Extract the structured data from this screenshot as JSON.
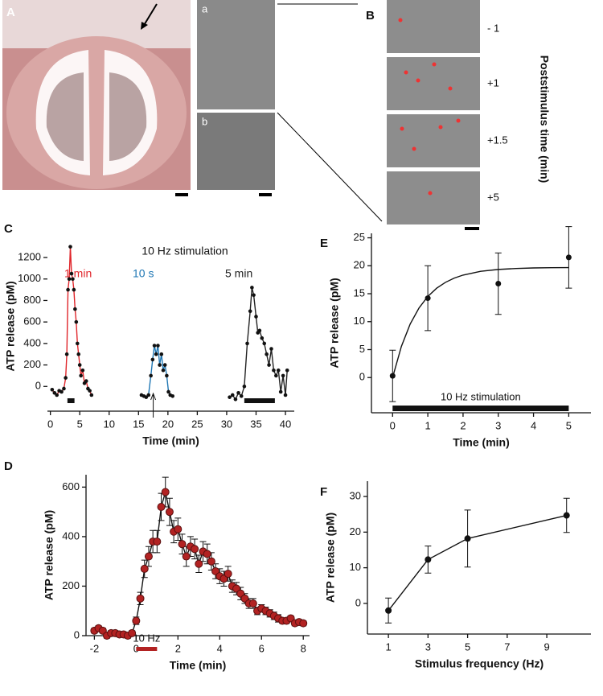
{
  "images": {
    "A": "A",
    "a": "a",
    "b": "b",
    "B": "B",
    "times": [
      "- 1",
      "+1",
      "+1.5",
      "+5"
    ],
    "time_axis": "Poststimulus time (min)"
  },
  "chart_data": [
    {
      "type": "line",
      "panel": "C",
      "annotation": "10 Hz stimulation",
      "xlabel": "Time (min)",
      "ylabel": "ATP release (pM)",
      "xlim": [
        -0.5,
        41.5
      ],
      "xticks": [
        0,
        5,
        10,
        15,
        20,
        25,
        30,
        35,
        40
      ],
      "ylim": [
        -230,
        1350
      ],
      "yticks": [
        0,
        200,
        400,
        600,
        800,
        1000,
        1200
      ],
      "stimulus": [
        {
          "start": 2.9,
          "end": 4.1
        },
        {
          "start": 33,
          "end": 38.2
        }
      ],
      "marker_x": 17.5,
      "series": [
        {
          "name": "1 min",
          "color": "#e0262b",
          "x": [
            0.3,
            0.7,
            1.1,
            1.5,
            1.9,
            2.3,
            2.6,
            2.8,
            3.0,
            3.2,
            3.4,
            3.6,
            3.8,
            4.0,
            4.2,
            4.4,
            4.6,
            4.8,
            5.0,
            5.2,
            5.5,
            5.8,
            6.1,
            6.4,
            6.7,
            7.0
          ],
          "values": [
            -30,
            -60,
            -80,
            -40,
            -50,
            -20,
            80,
            300,
            900,
            1000,
            1300,
            1050,
            1000,
            900,
            720,
            600,
            400,
            300,
            200,
            100,
            150,
            30,
            50,
            -20,
            -40,
            -80
          ]
        },
        {
          "name": "10 s",
          "color": "#1f77b4",
          "x": [
            15.5,
            15.9,
            16.3,
            16.7,
            17.1,
            17.4,
            17.7,
            18.0,
            18.3,
            18.6,
            18.9,
            19.2,
            19.5,
            19.8,
            20.1,
            20.4,
            20.8
          ],
          "values": [
            -80,
            -90,
            -100,
            -80,
            100,
            250,
            380,
            300,
            380,
            200,
            300,
            150,
            200,
            100,
            -50,
            -80,
            -90
          ]
        },
        {
          "name": "5 min",
          "color": "#222222",
          "x": [
            30.5,
            31,
            31.5,
            32,
            32.5,
            33,
            33.5,
            34,
            34.3,
            34.6,
            35,
            35.3,
            35.6,
            36,
            36.4,
            36.8,
            37.2,
            37.6,
            38,
            38.4,
            38.8,
            39.2,
            39.6,
            40,
            40.3
          ],
          "values": [
            -100,
            -80,
            -120,
            -60,
            -90,
            0,
            400,
            700,
            920,
            850,
            650,
            500,
            520,
            450,
            400,
            300,
            200,
            350,
            150,
            100,
            150,
            -50,
            100,
            -80,
            150
          ]
        }
      ]
    },
    {
      "type": "errorline",
      "panel": "D",
      "xlabel": "Time (min)",
      "ylabel": "ATP release (pM)",
      "xlim": [
        -2.4,
        8.3
      ],
      "xticks": [
        -2,
        0,
        2,
        4,
        6,
        8
      ],
      "ylim": [
        0,
        650
      ],
      "yticks": [
        0,
        200,
        400,
        600
      ],
      "stimulus": [
        {
          "start": 0,
          "end": 1,
          "label": "10 Hz"
        }
      ],
      "color": "#b22222",
      "x": [
        -2,
        -1.8,
        -1.6,
        -1.4,
        -1.2,
        -1,
        -0.8,
        -0.6,
        -0.4,
        -0.2,
        0,
        0.2,
        0.4,
        0.6,
        0.8,
        1,
        1.2,
        1.4,
        1.6,
        1.8,
        2,
        2.2,
        2.4,
        2.6,
        2.8,
        3,
        3.2,
        3.4,
        3.6,
        3.8,
        4,
        4.2,
        4.4,
        4.6,
        4.8,
        5,
        5.2,
        5.4,
        5.6,
        5.8,
        6,
        6.2,
        6.4,
        6.6,
        6.8,
        7,
        7.2,
        7.4,
        7.6,
        7.8,
        8
      ],
      "values": [
        20,
        30,
        20,
        0,
        10,
        10,
        5,
        5,
        0,
        10,
        60,
        150,
        270,
        320,
        380,
        380,
        520,
        580,
        500,
        420,
        430,
        370,
        320,
        360,
        350,
        290,
        340,
        330,
        300,
        260,
        240,
        230,
        250,
        200,
        190,
        170,
        150,
        130,
        130,
        100,
        110,
        100,
        90,
        80,
        70,
        60,
        60,
        70,
        50,
        55,
        50
      ],
      "errors": [
        10,
        10,
        10,
        10,
        10,
        10,
        10,
        10,
        10,
        10,
        15,
        25,
        35,
        40,
        45,
        45,
        55,
        60,
        55,
        45,
        45,
        40,
        40,
        40,
        40,
        35,
        40,
        40,
        35,
        30,
        30,
        30,
        30,
        25,
        25,
        25,
        20,
        20,
        20,
        15,
        15,
        15,
        15,
        15,
        15,
        10,
        10,
        10,
        10,
        10,
        10
      ]
    },
    {
      "type": "errorfit",
      "panel": "E",
      "xlabel": "Time (min)",
      "ylabel": "ATP release (pM)",
      "xlim": [
        -0.6,
        5.63
      ],
      "xticks": [
        0,
        1,
        2,
        3,
        4,
        5
      ],
      "ylim": [
        -6.3,
        25.8
      ],
      "yticks": [
        0,
        5,
        10,
        15,
        20,
        25
      ],
      "stimulus": [
        {
          "start": 0,
          "end": 5,
          "label": "10 Hz stimulation"
        }
      ],
      "color": "#111111",
      "x": [
        0,
        1,
        3,
        5
      ],
      "values": [
        0.3,
        14.2,
        16.8,
        21.5
      ],
      "errors": [
        4.6,
        5.8,
        5.5,
        5.5
      ],
      "fit": {
        "x": [
          0,
          0.25,
          0.5,
          0.75,
          1,
          1.25,
          1.5,
          1.75,
          2,
          2.5,
          3,
          3.5,
          4,
          4.5,
          5
        ],
        "y": [
          0,
          5.58,
          9.59,
          12.45,
          14.5,
          15.98,
          17.03,
          17.79,
          18.33,
          19.0,
          19.34,
          19.51,
          19.61,
          19.65,
          19.67
        ]
      }
    },
    {
      "type": "errorline",
      "panel": "F",
      "xlabel": "Stimulus frequency (Hz)",
      "ylabel": "ATP release (pM)",
      "xlim": [
        -0.06,
        11.23
      ],
      "xticks": [
        1,
        3,
        5,
        7,
        9
      ],
      "ylim": [
        -8.6,
        34.3
      ],
      "yticks": [
        0,
        10,
        20,
        30
      ],
      "color": "#111111",
      "x": [
        1,
        3,
        5,
        10
      ],
      "values": [
        -2,
        12.3,
        18.2,
        24.7
      ],
      "errors": [
        3.5,
        3.8,
        8,
        4.8
      ]
    }
  ]
}
